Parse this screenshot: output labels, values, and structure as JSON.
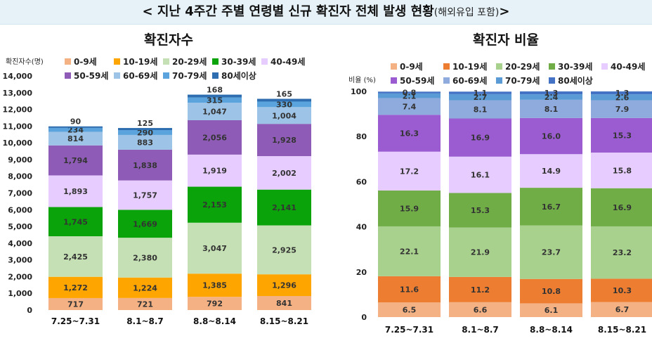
{
  "header": {
    "title": "< 지난 4주간 주별 연령별 신규 확진자 전체 발생 현황",
    "subtitle": "(해외유입 포함)",
    "close": ">"
  },
  "colors": {
    "0-9세": "#f4b183",
    "10-19세": "#ffa500",
    "20-29세": "#c5e0b4",
    "30-39세": "#0aa30a",
    "40-49세": "#e6ccff",
    "50-59세": "#8e5bb6",
    "60-69세": "#9dc3e6",
    "70-79세": "#5ba3dc",
    "80세이상": "#2e6eb0"
  },
  "colors_ratio": {
    "0-9세": "#f4b183",
    "10-19세": "#ed7d31",
    "20-29세": "#a9d18e",
    "30-39세": "#70ad47",
    "40-49세": "#e6ccff",
    "50-59세": "#9a5cd0",
    "60-69세": "#8faadc",
    "70-79세": "#5b9bd5",
    "80세이상": "#4472c4"
  },
  "chart_data": [
    {
      "type": "bar",
      "stacked": true,
      "title": "확진자수",
      "ylabel": "확진자수(명)",
      "xlabel": "",
      "ylim": [
        0,
        14000
      ],
      "yticks": [
        0,
        1000,
        2000,
        3000,
        4000,
        5000,
        6000,
        7000,
        8000,
        9000,
        10000,
        11000,
        12000,
        13000,
        14000
      ],
      "ytick_labels": [
        "0",
        "1,000",
        "2,000",
        "3,000",
        "4,000",
        "5,000",
        "6,000",
        "7,000",
        "8,000",
        "9,000",
        "10,000",
        "11,000",
        "12,000",
        "13,000",
        "14,000"
      ],
      "categories": [
        "7.25~7.31",
        "8.1~8.7",
        "8.8~8.14",
        "8.15~8.21"
      ],
      "legend": "top",
      "series": [
        {
          "name": "0-9세",
          "values": [
            717,
            721,
            792,
            841
          ],
          "labels": [
            "717",
            "721",
            "792",
            "841"
          ]
        },
        {
          "name": "10-19세",
          "values": [
            1272,
            1224,
            1385,
            1296
          ],
          "labels": [
            "1,272",
            "1,224",
            "1,385",
            "1,296"
          ]
        },
        {
          "name": "20-29세",
          "values": [
            2425,
            2380,
            3047,
            2925
          ],
          "labels": [
            "2,425",
            "2,380",
            "3,047",
            "2,925"
          ]
        },
        {
          "name": "30-39세",
          "values": [
            1745,
            1669,
            2153,
            2141
          ],
          "labels": [
            "1,745",
            "1,669",
            "2,153",
            "2,141"
          ]
        },
        {
          "name": "40-49세",
          "values": [
            1893,
            1757,
            1919,
            2002
          ],
          "labels": [
            "1,893",
            "1,757",
            "1,919",
            "2,002"
          ]
        },
        {
          "name": "50-59세",
          "values": [
            1794,
            1838,
            2056,
            1928
          ],
          "labels": [
            "1,794",
            "1,838",
            "2,056",
            "1,928"
          ]
        },
        {
          "name": "60-69세",
          "values": [
            814,
            883,
            1047,
            1004
          ],
          "labels": [
            "814",
            "883",
            "1,047",
            "1,004"
          ]
        },
        {
          "name": "70-79세",
          "values": [
            234,
            290,
            315,
            330
          ],
          "labels": [
            "234",
            "290",
            "315",
            "330"
          ]
        },
        {
          "name": "80세이상",
          "values": [
            90,
            125,
            168,
            165
          ],
          "labels": [
            "90",
            "125",
            "168",
            "165"
          ]
        }
      ]
    },
    {
      "type": "bar",
      "stacked": true,
      "title": "확진자 비율",
      "ylabel": "비율 (%)",
      "xlabel": "",
      "ylim": [
        0,
        100
      ],
      "yticks": [
        0,
        20,
        40,
        60,
        80,
        100
      ],
      "ytick_labels": [
        "0",
        "20",
        "40",
        "60",
        "80",
        "100"
      ],
      "categories": [
        "7.25~7.31",
        "8.1~8.7",
        "8.8~8.14",
        "8.15~8.21"
      ],
      "legend": "top",
      "series": [
        {
          "name": "0-9세",
          "values": [
            6.5,
            6.6,
            6.1,
            6.7
          ],
          "labels": [
            "6.5",
            "6.6",
            "6.1",
            "6.7"
          ]
        },
        {
          "name": "10-19세",
          "values": [
            11.6,
            11.2,
            10.8,
            10.3
          ],
          "labels": [
            "11.6",
            "11.2",
            "10.8",
            "10.3"
          ]
        },
        {
          "name": "20-29세",
          "values": [
            22.1,
            21.9,
            23.7,
            23.2
          ],
          "labels": [
            "22.1",
            "21.9",
            "23.7",
            "23.2"
          ]
        },
        {
          "name": "30-39세",
          "values": [
            15.9,
            15.3,
            16.7,
            16.9
          ],
          "labels": [
            "15.9",
            "15.3",
            "16.7",
            "16.9"
          ]
        },
        {
          "name": "40-49세",
          "values": [
            17.2,
            16.1,
            14.9,
            15.8
          ],
          "labels": [
            "17.2",
            "16.1",
            "14.9",
            "15.8"
          ]
        },
        {
          "name": "50-59세",
          "values": [
            16.3,
            16.9,
            16.0,
            15.3
          ],
          "labels": [
            "16.3",
            "16.9",
            "16.0",
            "15.3"
          ]
        },
        {
          "name": "60-69세",
          "values": [
            7.4,
            8.1,
            8.1,
            7.9
          ],
          "labels": [
            "7.4",
            "8.1",
            "8.1",
            "7.9"
          ]
        },
        {
          "name": "70-79세",
          "values": [
            2.1,
            2.7,
            2.4,
            2.6
          ],
          "labels": [
            "2.1",
            "2.7",
            "2.4",
            "2.6"
          ]
        },
        {
          "name": "80세이상",
          "values": [
            0.8,
            1.1,
            1.3,
            1.3
          ],
          "labels": [
            "0.8",
            "1.1",
            "1.3",
            "1.3"
          ]
        }
      ]
    }
  ]
}
